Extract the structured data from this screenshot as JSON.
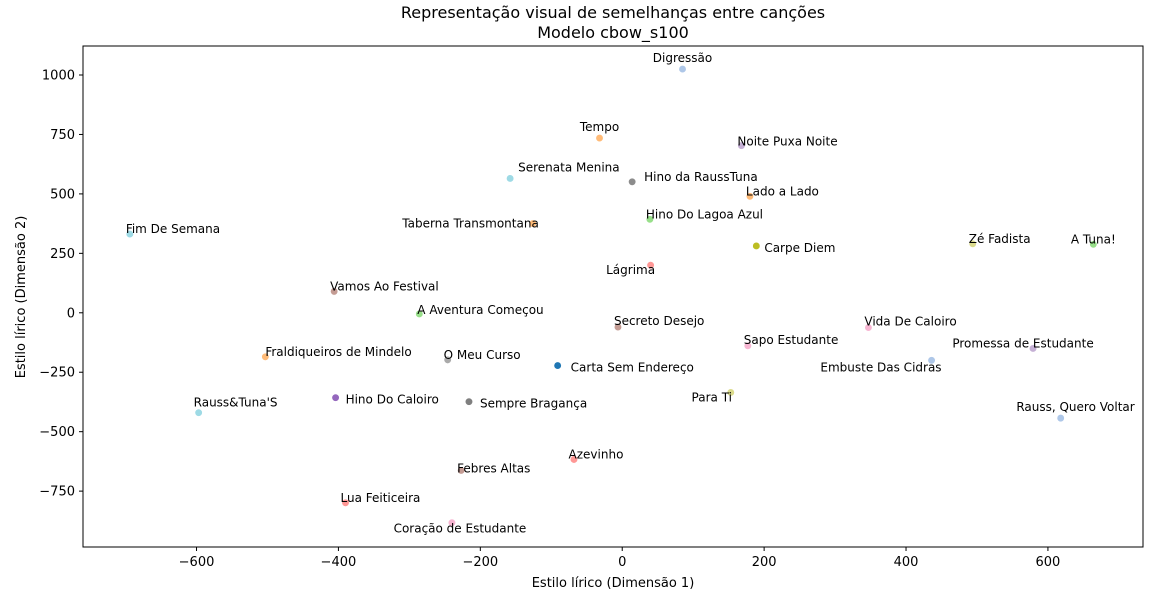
{
  "chart_data": {
    "type": "scatter",
    "title": "Representação visual de semelhanças entre canções",
    "subtitle": "Modelo cbow_s100",
    "xlabel": "Estilo lírico (Dimensão 1)",
    "ylabel": "Estilo lírico (Dimensão 2)",
    "xlim": [
      -760,
      734
    ],
    "ylim": [
      -985,
      1122
    ],
    "xticks": [
      -600,
      -400,
      -200,
      0,
      200,
      400,
      600
    ],
    "yticks": [
      -750,
      -500,
      -250,
      0,
      250,
      500,
      750,
      1000
    ],
    "xtick_labels": [
      "−600",
      "−400",
      "−200",
      "0",
      "200",
      "400",
      "600"
    ],
    "ytick_labels": [
      "−750",
      "−500",
      "−250",
      "0",
      "250",
      "500",
      "750",
      "1000"
    ],
    "grid": false,
    "legend": "none",
    "points": [
      {
        "label": "Digressão",
        "x": 85,
        "y": 1025,
        "color": "#aec7e8"
      },
      {
        "label": "Tempo",
        "x": -32,
        "y": 735,
        "color": "#ffbb78"
      },
      {
        "label": "Noite Puxa Noite",
        "x": 168,
        "y": 703,
        "color": "#c5b0d5"
      },
      {
        "label": "Serenata Menina",
        "x": -158,
        "y": 565,
        "color": "#9edae5"
      },
      {
        "label": "Hino da RaussTuna",
        "x": 14,
        "y": 551,
        "color": "#8c8c8c"
      },
      {
        "label": "Lado a Lado",
        "x": 180,
        "y": 490,
        "color": "#ffbb78"
      },
      {
        "label": "Hino Do Lagoa Azul",
        "x": 39,
        "y": 393,
        "color": "#98df8a"
      },
      {
        "label": "Taberna Transmontana",
        "x": -126,
        "y": 375,
        "color": "#ffbb78"
      },
      {
        "label": "Fim De Semana",
        "x": -694,
        "y": 331,
        "color": "#9edae5"
      },
      {
        "label": "Zé Fadista",
        "x": 494,
        "y": 290,
        "color": "#dbdb8d"
      },
      {
        "label": "A Tuna!",
        "x": 664,
        "y": 288,
        "color": "#98df8a"
      },
      {
        "label": "Carpe Diem",
        "x": 189,
        "y": 281,
        "color": "#bcbd22"
      },
      {
        "label": "Lágrima",
        "x": 40,
        "y": 200,
        "color": "#ff9896"
      },
      {
        "label": "Vamos Ao Festival",
        "x": -406,
        "y": 90,
        "color": "#c49c94"
      },
      {
        "label": "A Aventura Começou",
        "x": -286,
        "y": -5,
        "color": "#98df8a"
      },
      {
        "label": "Secreto Desejo",
        "x": -6,
        "y": -60,
        "color": "#c49c94"
      },
      {
        "label": "Vida De Caloiro",
        "x": 347,
        "y": -62,
        "color": "#f7b6d2"
      },
      {
        "label": "Sapo Estudante",
        "x": 177,
        "y": -139,
        "color": "#f7b6d2"
      },
      {
        "label": "Promessa de Estudante",
        "x": 579,
        "y": -150,
        "color": "#c5b0d5"
      },
      {
        "label": "Fraldiqueiros de Mindelo",
        "x": -503,
        "y": -185,
        "color": "#ffbb78"
      },
      {
        "label": "O Meu Curso",
        "x": -246,
        "y": -198,
        "color": "#aaaaaa"
      },
      {
        "label": "Embuste Das Cidras",
        "x": 436,
        "y": -200,
        "color": "#aec7e8"
      },
      {
        "label": "Carta Sem Endereço",
        "x": -91,
        "y": -222,
        "color": "#1f77b4"
      },
      {
        "label": "Para Ti",
        "x": 153,
        "y": -335,
        "color": "#dbdb8d"
      },
      {
        "label": "Hino Do Caloiro",
        "x": -404,
        "y": -357,
        "color": "#9467bd"
      },
      {
        "label": "Sempre Bragança",
        "x": -216,
        "y": -374,
        "color": "#7f7f7f"
      },
      {
        "label": "Rauss&Tuna'S",
        "x": -597,
        "y": -420,
        "color": "#9edae5"
      },
      {
        "label": "Rauss, Quero Voltar",
        "x": 618,
        "y": -443,
        "color": "#aec7e8"
      },
      {
        "label": "Azevinho",
        "x": -68,
        "y": -617,
        "color": "#ff9896"
      },
      {
        "label": "Febres Altas",
        "x": -227,
        "y": -663,
        "color": "#c49c94"
      },
      {
        "label": "Lua Feiticeira",
        "x": -390,
        "y": -799,
        "color": "#ff9896"
      },
      {
        "label": "Coração de Estudante",
        "x": -240,
        "y": -883,
        "color": "#f7b6d2"
      }
    ]
  }
}
